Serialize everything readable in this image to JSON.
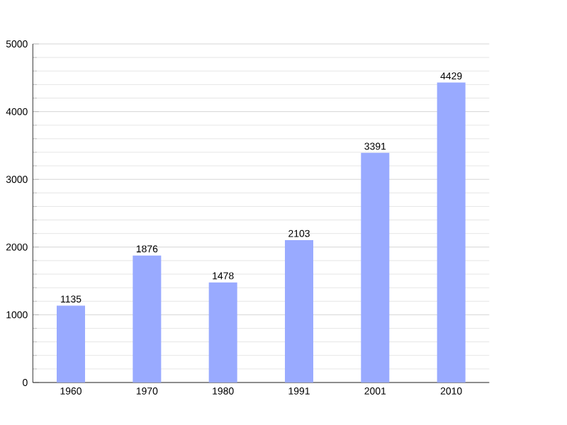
{
  "chart_data": {
    "type": "bar",
    "categories": [
      "1960",
      "1970",
      "1980",
      "1991",
      "2001",
      "2010"
    ],
    "values": [
      1135,
      1876,
      1478,
      2103,
      3391,
      4429
    ],
    "color": "#99aaff",
    "ylim": [
      0,
      5000
    ],
    "yticks": [
      0,
      1000,
      2000,
      3000,
      4000,
      5000
    ],
    "grid": "y",
    "data_labels": true
  }
}
